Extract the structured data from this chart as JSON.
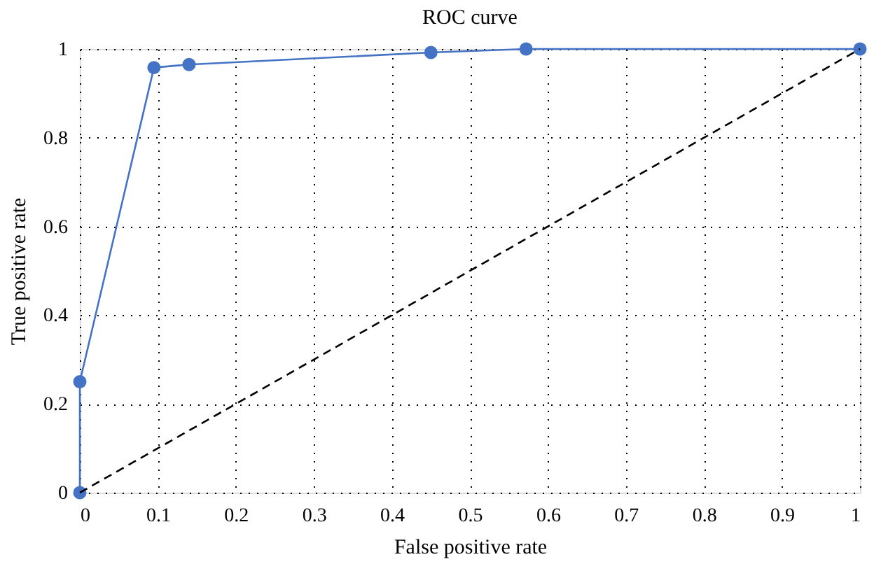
{
  "chart_data": {
    "type": "line",
    "title": "ROC curve",
    "xlabel": "False positive rate",
    "ylabel": "True positive rate",
    "series": [
      {
        "color": "#4472c4",
        "x": [
          0,
          0,
          0.095,
          0.14,
          0.45,
          0.572,
          1
        ],
        "values": [
          0,
          0.25,
          0.958,
          0.965,
          0.992,
          1,
          1
        ],
        "marker": "circle",
        "line_style": "solid"
      },
      {
        "color": "#000000",
        "x": [
          0,
          1
        ],
        "values": [
          0,
          1
        ],
        "marker": "none",
        "line_style": "dashed"
      }
    ],
    "xlim": [
      0,
      1
    ],
    "ylim": [
      0,
      1
    ],
    "xticks": [
      0,
      0.1,
      0.2,
      0.3,
      0.4,
      0.5,
      0.6,
      0.7,
      0.8,
      0.9,
      1
    ],
    "yticks": [
      0,
      0.2,
      0.4,
      0.6,
      0.8,
      1
    ],
    "grid": true
  }
}
